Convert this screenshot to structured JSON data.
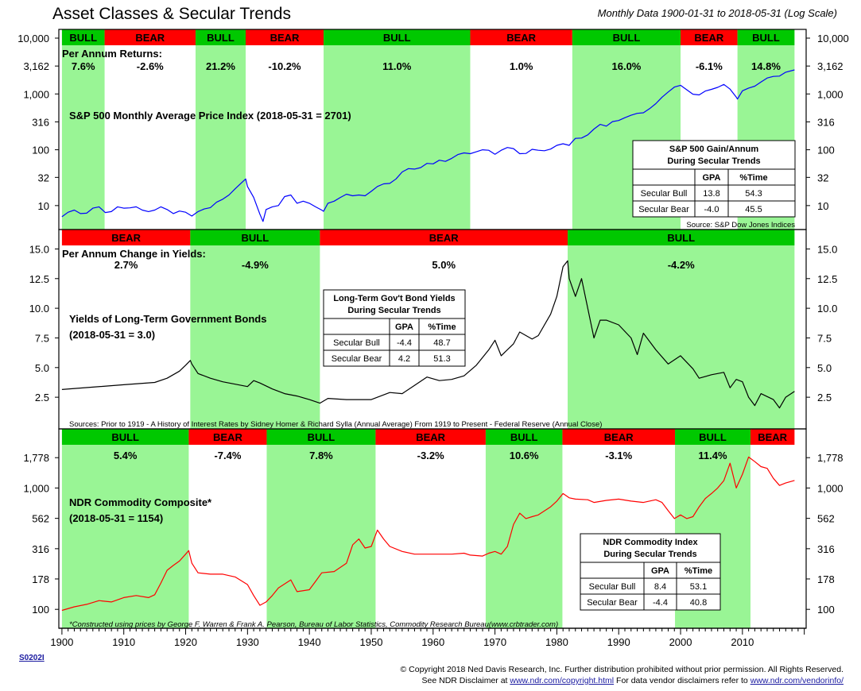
{
  "title": "Asset Classes & Secular Trends",
  "subtitle": "Monthly Data 1900-01-31 to 2018-05-31 (Log Scale)",
  "footer": {
    "code": "S0202I",
    "copyright": "© Copyright 2018 Ned Davis Research, Inc. Further distribution prohibited without prior permission. All Rights Reserved.",
    "disclaimer_prefix": "See NDR Disclaimer at ",
    "disclaimer_link1": "www.ndr.com/copyright.html",
    "disclaimer_mid": "  For data vendor disclaimers refer to ",
    "disclaimer_link2": "www.ndr.com/vendorinfo/"
  },
  "colors": {
    "bull_band": "#99f595",
    "bull_header": "#00c800",
    "bear_header": "#ff0000",
    "sp500_line": "#0000ff",
    "bond_line": "#000000",
    "commodity_line": "#ff0000"
  },
  "chart_data": [
    {
      "type": "line",
      "name": "sp500",
      "label": "S&P 500 Monthly Average Price Index (2018-05-31 = 2701)",
      "returns_label": "Per Annum Returns:",
      "source": "Source:  S&P Dow Jones Indices",
      "y_scale": "log",
      "ylim": [
        5,
        10000
      ],
      "yticks": [
        10,
        32,
        100,
        316,
        1000,
        3162,
        10000
      ],
      "ytick_labels": [
        "10",
        "32",
        "100",
        "316",
        "1,000",
        "3,162",
        "10,000"
      ],
      "periods": [
        {
          "type": "BULL",
          "start": 1900,
          "end": 1906.9,
          "gpa": "7.6%"
        },
        {
          "type": "BEAR",
          "start": 1906.9,
          "end": 1921.6,
          "gpa": "-2.6%"
        },
        {
          "type": "BULL",
          "start": 1921.6,
          "end": 1929.7,
          "gpa": "21.2%"
        },
        {
          "type": "BEAR",
          "start": 1929.7,
          "end": 1942.3,
          "gpa": "-10.2%"
        },
        {
          "type": "BULL",
          "start": 1942.3,
          "end": 1966.0,
          "gpa": "11.0%"
        },
        {
          "type": "BEAR",
          "start": 1966.0,
          "end": 1982.5,
          "gpa": "1.0%"
        },
        {
          "type": "BULL",
          "start": 1982.5,
          "end": 2000.0,
          "gpa": "16.0%"
        },
        {
          "type": "BEAR",
          "start": 2000.0,
          "end": 2009.2,
          "gpa": "-6.1%"
        },
        {
          "type": "BULL",
          "start": 2009.2,
          "end": 2018.42,
          "gpa": "14.8%"
        }
      ],
      "table": {
        "title1": "S&P 500 Gain/Annum",
        "title2": "During Secular Trends",
        "headers": [
          "",
          "GPA",
          "%Time"
        ],
        "rows": [
          [
            "Secular Bull",
            "13.8",
            "54.3"
          ],
          [
            "Secular Bear",
            "-4.0",
            "45.5"
          ]
        ]
      },
      "x": [
        1900,
        1901,
        1902,
        1903,
        1904,
        1905,
        1906,
        1907,
        1908,
        1909,
        1910,
        1911,
        1912,
        1913,
        1914,
        1915,
        1916,
        1917,
        1918,
        1919,
        1920,
        1921,
        1922,
        1923,
        1924,
        1925,
        1926,
        1927,
        1928,
        1929,
        1929.7,
        1930,
        1931,
        1932,
        1932.5,
        1933,
        1934,
        1935,
        1936,
        1937,
        1938,
        1939,
        1940,
        1941,
        1942,
        1942.3,
        1943,
        1944,
        1945,
        1946,
        1947,
        1948,
        1949,
        1950,
        1951,
        1952,
        1953,
        1954,
        1955,
        1956,
        1957,
        1958,
        1959,
        1960,
        1961,
        1962,
        1963,
        1964,
        1965,
        1966,
        1967,
        1968,
        1969,
        1970,
        1971,
        1972,
        1973,
        1974,
        1975,
        1976,
        1977,
        1978,
        1979,
        1980,
        1981,
        1982,
        1982.5,
        1983,
        1984,
        1985,
        1986,
        1987,
        1988,
        1989,
        1990,
        1991,
        1992,
        1993,
        1994,
        1995,
        1996,
        1997,
        1998,
        1999,
        2000,
        2001,
        2002,
        2003,
        2004,
        2005,
        2006,
        2007,
        2008,
        2009,
        2009.2,
        2010,
        2011,
        2012,
        2013,
        2014,
        2015,
        2016,
        2017,
        2018.42
      ],
      "values": [
        6.3,
        7.6,
        8.3,
        7.2,
        7.3,
        9.0,
        9.5,
        7.5,
        7.8,
        9.5,
        9.0,
        9.1,
        9.5,
        8.3,
        7.8,
        8.3,
        9.5,
        8.5,
        7.2,
        8.0,
        7.6,
        6.5,
        7.8,
        8.7,
        9.2,
        11.5,
        13.0,
        15.5,
        20.0,
        25.5,
        30.0,
        22.0,
        14.0,
        7.0,
        5.2,
        8.5,
        9.5,
        10.0,
        14.5,
        15.5,
        11.0,
        12.0,
        11.0,
        9.5,
        8.3,
        7.9,
        11.0,
        12.0,
        14.0,
        16.0,
        15.0,
        15.5,
        15.0,
        18.0,
        22.0,
        24.5,
        25.0,
        30.0,
        40.0,
        46.0,
        45.0,
        48.0,
        57.0,
        56.0,
        65.0,
        62.0,
        70.0,
        82.0,
        88.0,
        85.0,
        92.0,
        100.0,
        98.0,
        83.0,
        98.0,
        110.0,
        105.0,
        85.0,
        86.0,
        102.0,
        98.0,
        96.0,
        103.0,
        120.0,
        128.0,
        120.0,
        140.0,
        160.0,
        162.0,
        185.0,
        235.0,
        285.0,
        265.0,
        320.0,
        335.0,
        375.0,
        415.0,
        450.0,
        460.0,
        545.0,
        670.0,
        875.0,
        1085.0,
        1330.0,
        1430.0,
        1190.0,
        990.0,
        960.0,
        1130.0,
        1210.0,
        1310.0,
        1480.0,
        1220.0,
        880.0,
        810.0,
        1140.0,
        1275.0,
        1380.0,
        1640.0,
        1930.0,
        2060.0,
        2090.0,
        2450.0,
        2701.0
      ]
    },
    {
      "type": "line",
      "name": "bonds",
      "label1": "Yields of Long-Term Government Bonds",
      "label2": "(2018-05-31 = 3.0)",
      "returns_label": "Per Annum Change in Yields:",
      "source": "Sources: Prior to 1919 - A History of Interest Rates by Sidney Homer & Richard Sylla (Annual Average) From 1919 to Present - Federal Reserve (Annual Close)",
      "y_scale": "linear",
      "ylim": [
        0.5,
        15.9
      ],
      "yticks": [
        2.5,
        5.0,
        7.5,
        10.0,
        12.5,
        15.0
      ],
      "ytick_labels": [
        "2.5",
        "5.0",
        "7.5",
        "10.0",
        "12.5",
        "15.0"
      ],
      "periods": [
        {
          "type": "BEAR",
          "start": 1900,
          "end": 1920.75,
          "gpa": "2.7%"
        },
        {
          "type": "BULL",
          "start": 1920.75,
          "end": 1941.7,
          "gpa": "-4.9%"
        },
        {
          "type": "BEAR",
          "start": 1941.7,
          "end": 1981.75,
          "gpa": "5.0%"
        },
        {
          "type": "BULL",
          "start": 1981.75,
          "end": 2018.42,
          "gpa": "-4.2%"
        }
      ],
      "table": {
        "title1": "Long-Term Gov't Bond Yields",
        "title2": "During Secular Trends",
        "headers": [
          "",
          "GPA",
          "%Time"
        ],
        "rows": [
          [
            "Secular Bull",
            "-4.4",
            "48.7"
          ],
          [
            "Secular Bear",
            "4.2",
            "51.3"
          ]
        ]
      },
      "x": [
        1900,
        1905,
        1910,
        1915,
        1917,
        1919,
        1920,
        1920.75,
        1921,
        1922,
        1924,
        1926,
        1928,
        1930,
        1931,
        1932,
        1934,
        1936,
        1938,
        1940,
        1941.7,
        1943,
        1946,
        1950,
        1953,
        1955,
        1957,
        1959,
        1961,
        1963,
        1965,
        1967,
        1969,
        1970,
        1971,
        1973,
        1974,
        1976,
        1977,
        1979,
        1980,
        1981,
        1981.75,
        1982,
        1983,
        1984,
        1985,
        1986,
        1987,
        1988,
        1990,
        1992,
        1993,
        1994,
        1996,
        1998,
        2000,
        2002,
        2003,
        2005,
        2007,
        2008,
        2009,
        2010,
        2011,
        2012,
        2013,
        2015,
        2016,
        2017,
        2018.42
      ],
      "values": [
        3.15,
        3.35,
        3.55,
        3.75,
        4.1,
        4.7,
        5.2,
        5.6,
        5.3,
        4.5,
        4.1,
        3.8,
        3.6,
        3.4,
        3.9,
        3.7,
        3.2,
        2.8,
        2.6,
        2.3,
        2.0,
        2.4,
        2.3,
        2.3,
        2.9,
        2.8,
        3.5,
        4.2,
        3.9,
        4.0,
        4.3,
        5.2,
        6.5,
        7.3,
        6.0,
        7.0,
        8.0,
        7.4,
        7.7,
        9.5,
        11.0,
        13.5,
        14.0,
        12.5,
        11.0,
        12.5,
        10.0,
        7.5,
        9.0,
        9.0,
        8.6,
        7.5,
        6.1,
        7.9,
        6.5,
        5.3,
        6.0,
        4.9,
        4.1,
        4.4,
        4.6,
        3.3,
        4.0,
        3.8,
        2.5,
        1.8,
        2.8,
        2.3,
        1.6,
        2.5,
        3.0
      ]
    },
    {
      "type": "line",
      "name": "commodities",
      "label1": "NDR Commodity Composite*",
      "label2": "(2018-05-31 = 1154)",
      "source": "*Constructed using prices by George F. Warren & Frank A. Pearson, Bureau of Labor Statistics, Commodity Research Bureau(www.crbtrader.com)",
      "y_scale": "log",
      "ylim": [
        80,
        2600
      ],
      "yticks": [
        100,
        178,
        316,
        562,
        1000,
        1778
      ],
      "ytick_labels": [
        "100",
        "178",
        "316",
        "562",
        "1,000",
        "1,778"
      ],
      "periods": [
        {
          "type": "BULL",
          "start": 1900,
          "end": 1920.5,
          "gpa": "5.4%"
        },
        {
          "type": "BEAR",
          "start": 1920.5,
          "end": 1933.1,
          "gpa": "-7.4%"
        },
        {
          "type": "BULL",
          "start": 1933.1,
          "end": 1950.7,
          "gpa": "7.8%"
        },
        {
          "type": "BEAR",
          "start": 1950.7,
          "end": 1968.5,
          "gpa": "-3.2%"
        },
        {
          "type": "BULL",
          "start": 1968.5,
          "end": 1980.9,
          "gpa": "10.6%"
        },
        {
          "type": "BEAR",
          "start": 1980.9,
          "end": 1999.1,
          "gpa": "-3.1%"
        },
        {
          "type": "BULL",
          "start": 1999.1,
          "end": 2011.3,
          "gpa": "11.4%"
        },
        {
          "type": "BEAR",
          "start": 2011.3,
          "end": 2018.42,
          "gpa": ""
        }
      ],
      "table": {
        "title1": "NDR Commodity Index",
        "title2": "During Secular Trends",
        "headers": [
          "",
          "GPA",
          "%Time"
        ],
        "rows": [
          [
            "Secular Bull",
            "8.4",
            "53.1"
          ],
          [
            "Secular Bear",
            "-4.4",
            "40.8"
          ]
        ]
      },
      "x": [
        1900,
        1902,
        1904,
        1906,
        1908,
        1910,
        1912,
        1914,
        1915,
        1916,
        1917,
        1918,
        1919,
        1920,
        1920.5,
        1921,
        1922,
        1924,
        1926,
        1928,
        1930,
        1931,
        1932,
        1933,
        1934,
        1935,
        1937,
        1938,
        1940,
        1941,
        1942,
        1944,
        1946,
        1947,
        1948,
        1949,
        1950,
        1951,
        1952,
        1953,
        1955,
        1957,
        1960,
        1963,
        1965,
        1966,
        1968,
        1969,
        1970,
        1971,
        1972,
        1973,
        1974,
        1975,
        1976,
        1977,
        1979,
        1980,
        1981,
        1982,
        1983,
        1985,
        1986,
        1988,
        1990,
        1992,
        1994,
        1996,
        1997,
        1998,
        1999,
        2000,
        2001,
        2002,
        2003,
        2004,
        2005,
        2006,
        2007,
        2008,
        2009,
        2010,
        2011,
        2012,
        2013,
        2014,
        2015,
        2016,
        2017,
        2018.42
      ],
      "values": [
        98,
        105,
        110,
        118,
        115,
        125,
        130,
        125,
        132,
        165,
        210,
        230,
        250,
        285,
        305,
        240,
        200,
        195,
        195,
        185,
        160,
        130,
        108,
        115,
        130,
        150,
        175,
        140,
        145,
        170,
        200,
        205,
        240,
        340,
        380,
        320,
        330,
        450,
        380,
        330,
        300,
        285,
        285,
        285,
        290,
        280,
        275,
        290,
        300,
        285,
        330,
        500,
        620,
        560,
        580,
        600,
        700,
        780,
        900,
        830,
        810,
        800,
        760,
        790,
        810,
        780,
        760,
        800,
        760,
        650,
        560,
        600,
        560,
        580,
        700,
        820,
        900,
        1000,
        1150,
        1600,
        1000,
        1300,
        1800,
        1650,
        1500,
        1450,
        1200,
        1050,
        1100,
        1154
      ]
    }
  ],
  "x_axis": {
    "xlim": [
      1899.5,
      2020.3
    ],
    "ticks": [
      1900,
      1910,
      1920,
      1930,
      1940,
      1950,
      1960,
      1970,
      1980,
      1990,
      2000,
      2010
    ],
    "tick_labels": [
      "1900",
      "1910",
      "1920",
      "1930",
      "1940",
      "1950",
      "1960",
      "1970",
      "1980",
      "1990",
      "2000",
      "2010"
    ]
  }
}
